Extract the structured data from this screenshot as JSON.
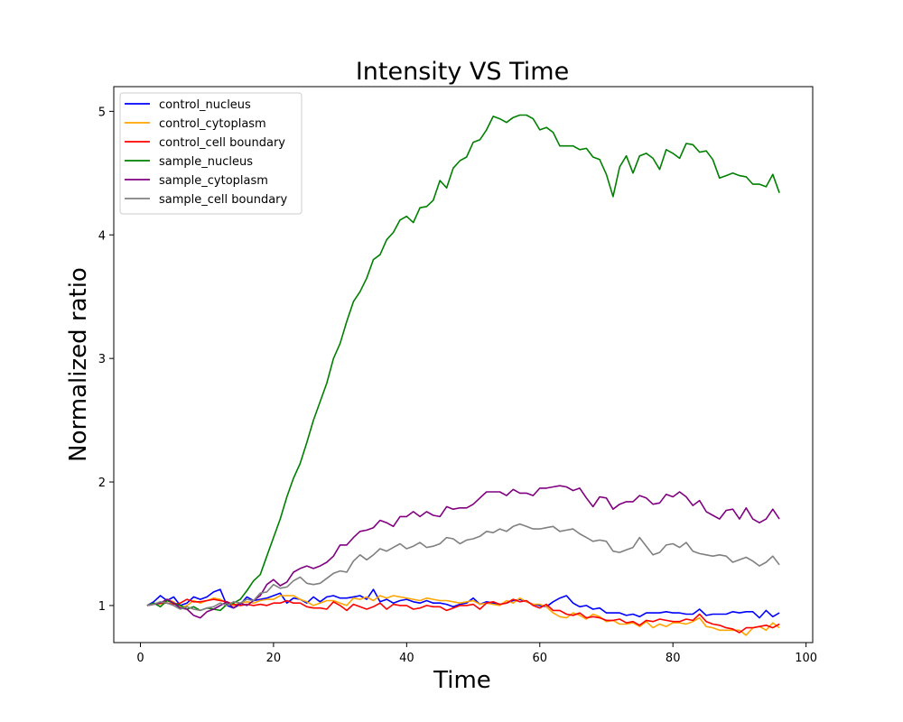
{
  "chart_data": {
    "type": "line",
    "title": "Intensity VS Time",
    "xlabel": "Time",
    "ylabel": "Normalized ratio",
    "xlim": [
      -4,
      101
    ],
    "ylim": [
      0.7,
      5.2
    ],
    "xticks": [
      0,
      20,
      40,
      60,
      80,
      100
    ],
    "yticks": [
      1,
      2,
      3,
      4,
      5
    ],
    "grid": false,
    "legend_position": "top-left",
    "x": [
      1,
      2,
      3,
      4,
      5,
      6,
      7,
      8,
      9,
      10,
      11,
      12,
      13,
      14,
      15,
      16,
      17,
      18,
      19,
      20,
      21,
      22,
      23,
      24,
      25,
      26,
      27,
      28,
      29,
      30,
      31,
      32,
      33,
      34,
      35,
      36,
      37,
      38,
      39,
      40,
      41,
      42,
      43,
      44,
      45,
      46,
      47,
      48,
      49,
      50,
      51,
      52,
      53,
      54,
      55,
      56,
      57,
      58,
      59,
      60,
      61,
      62,
      63,
      64,
      65,
      66,
      67,
      68,
      69,
      70,
      71,
      72,
      73,
      74,
      75,
      76,
      77,
      78,
      79,
      80,
      81,
      82,
      83,
      84,
      85,
      86,
      87,
      88,
      89,
      90,
      91,
      92,
      93,
      94,
      95,
      96
    ],
    "series": [
      {
        "name": "control_nucleus",
        "color": "#0000ff",
        "values": [
          1.0,
          1.03,
          1.08,
          1.04,
          1.07,
          1.0,
          1.02,
          1.07,
          1.05,
          1.07,
          1.11,
          1.13,
          1.0,
          0.98,
          1.01,
          1.07,
          1.04,
          1.05,
          1.06,
          1.08,
          1.1,
          1.02,
          1.06,
          1.05,
          1.02,
          1.07,
          1.03,
          1.07,
          1.08,
          1.06,
          1.06,
          1.07,
          1.08,
          1.05,
          1.13,
          1.03,
          1.05,
          1.02,
          1.04,
          1.05,
          1.03,
          1.02,
          1.04,
          1.02,
          1.02,
          1.01,
          0.99,
          1.01,
          1.02,
          1.06,
          1.01,
          1.03,
          1.02,
          1.01,
          1.02,
          1.04,
          1.05,
          1.03,
          1.01,
          1.0,
          0.99,
          1.03,
          1.06,
          1.08,
          1.02,
          0.99,
          1.0,
          0.97,
          0.98,
          0.94,
          0.94,
          0.94,
          0.92,
          0.93,
          0.91,
          0.94,
          0.94,
          0.94,
          0.95,
          0.94,
          0.94,
          0.93,
          0.93,
          0.97,
          0.92,
          0.93,
          0.93,
          0.93,
          0.95,
          0.94,
          0.95,
          0.95,
          0.9,
          0.96,
          0.91,
          0.94
        ]
      },
      {
        "name": "control_cytoplasm",
        "color": "#ffa500",
        "values": [
          1.0,
          1.02,
          1.01,
          1.05,
          1.03,
          0.98,
          1.0,
          1.04,
          1.02,
          1.04,
          1.06,
          1.05,
          1.02,
          1.0,
          1.02,
          1.03,
          1.02,
          1.04,
          1.05,
          1.05,
          1.08,
          1.08,
          1.08,
          1.05,
          1.03,
          1.0,
          1.02,
          1.04,
          1.04,
          1.02,
          1.0,
          1.06,
          1.05,
          1.07,
          1.04,
          1.08,
          1.06,
          1.08,
          1.07,
          1.06,
          1.05,
          1.04,
          1.06,
          1.05,
          1.04,
          1.04,
          1.03,
          1.02,
          1.03,
          1.04,
          1.01,
          1.02,
          1.01,
          1.0,
          1.04,
          1.02,
          1.06,
          1.03,
          1.01,
          1.01,
          0.99,
          0.94,
          0.91,
          0.9,
          0.94,
          0.92,
          0.89,
          0.93,
          0.91,
          0.87,
          0.88,
          0.85,
          0.85,
          0.86,
          0.83,
          0.87,
          0.82,
          0.85,
          0.83,
          0.86,
          0.86,
          0.85,
          0.87,
          0.9,
          0.83,
          0.82,
          0.8,
          0.8,
          0.8,
          0.8,
          0.76,
          0.82,
          0.83,
          0.8,
          0.86,
          0.82
        ]
      },
      {
        "name": "control_cell boundary",
        "color": "#ff0000",
        "values": [
          1.0,
          1.01,
          1.02,
          1.02,
          1.01,
          1.02,
          1.05,
          1.03,
          1.03,
          1.04,
          1.05,
          1.04,
          1.03,
          1.01,
          1.0,
          1.01,
          1.0,
          1.01,
          1.0,
          1.02,
          1.02,
          1.04,
          1.02,
          1.02,
          0.99,
          0.98,
          0.98,
          0.97,
          1.03,
          1.0,
          0.96,
          1.01,
          0.99,
          0.97,
          0.99,
          1.02,
          0.97,
          1.01,
          1.0,
          1.0,
          0.97,
          0.98,
          1.0,
          0.99,
          0.99,
          0.96,
          0.98,
          1.0,
          1.0,
          1.01,
          0.97,
          1.02,
          1.03,
          1.01,
          1.02,
          1.05,
          1.03,
          1.04,
          1.0,
          0.98,
          1.01,
          0.96,
          0.96,
          0.93,
          0.92,
          0.94,
          0.9,
          0.91,
          0.9,
          0.88,
          0.88,
          0.89,
          0.86,
          0.87,
          0.84,
          0.88,
          0.87,
          0.89,
          0.88,
          0.87,
          0.87,
          0.89,
          0.88,
          0.93,
          0.87,
          0.85,
          0.84,
          0.82,
          0.81,
          0.78,
          0.82,
          0.82,
          0.83,
          0.84,
          0.82,
          0.85
        ]
      },
      {
        "name": "sample_nucleus",
        "color": "#008000",
        "values": [
          1.0,
          1.02,
          0.99,
          1.04,
          1.02,
          1.0,
          0.97,
          0.99,
          0.96,
          0.98,
          0.97,
          0.96,
          1.01,
          1.02,
          1.05,
          1.12,
          1.2,
          1.25,
          1.4,
          1.55,
          1.7,
          1.88,
          2.03,
          2.15,
          2.32,
          2.5,
          2.65,
          2.8,
          3.0,
          3.12,
          3.3,
          3.46,
          3.54,
          3.65,
          3.8,
          3.84,
          3.96,
          4.02,
          4.12,
          4.15,
          4.1,
          4.22,
          4.23,
          4.28,
          4.44,
          4.38,
          4.54,
          4.6,
          4.63,
          4.75,
          4.77,
          4.85,
          4.96,
          4.94,
          4.91,
          4.95,
          4.97,
          4.97,
          4.94,
          4.85,
          4.87,
          4.83,
          4.72,
          4.72,
          4.72,
          4.69,
          4.7,
          4.63,
          4.61,
          4.49,
          4.31,
          4.55,
          4.64,
          4.5,
          4.64,
          4.66,
          4.62,
          4.53,
          4.69,
          4.66,
          4.62,
          4.74,
          4.73,
          4.67,
          4.68,
          4.61,
          4.46,
          4.48,
          4.5,
          4.48,
          4.47,
          4.41,
          4.41,
          4.39,
          4.49,
          4.34
        ]
      },
      {
        "name": "sample_cytoplasm",
        "color": "#800080",
        "values": [
          1.0,
          1.01,
          1.02,
          1.05,
          1.02,
          0.98,
          0.97,
          0.92,
          0.9,
          0.95,
          0.97,
          1.0,
          1.03,
          0.98,
          1.02,
          1.0,
          1.04,
          1.08,
          1.17,
          1.21,
          1.16,
          1.19,
          1.27,
          1.3,
          1.32,
          1.3,
          1.32,
          1.35,
          1.4,
          1.49,
          1.49,
          1.55,
          1.6,
          1.61,
          1.63,
          1.69,
          1.67,
          1.64,
          1.72,
          1.72,
          1.76,
          1.72,
          1.76,
          1.73,
          1.72,
          1.8,
          1.78,
          1.79,
          1.79,
          1.82,
          1.87,
          1.92,
          1.92,
          1.92,
          1.89,
          1.94,
          1.91,
          1.91,
          1.89,
          1.95,
          1.95,
          1.96,
          1.97,
          1.96,
          1.93,
          1.95,
          1.87,
          1.8,
          1.88,
          1.87,
          1.78,
          1.82,
          1.84,
          1.84,
          1.89,
          1.87,
          1.82,
          1.83,
          1.9,
          1.88,
          1.92,
          1.88,
          1.81,
          1.85,
          1.76,
          1.73,
          1.7,
          1.77,
          1.78,
          1.7,
          1.79,
          1.7,
          1.67,
          1.7,
          1.78,
          1.7
        ]
      },
      {
        "name": "sample_cell boundary",
        "color": "#808080",
        "values": [
          1.0,
          1.01,
          1.03,
          1.02,
          1.0,
          0.97,
          0.99,
          0.97,
          0.96,
          0.98,
          0.99,
          1.02,
          1.0,
          1.03,
          1.02,
          1.05,
          1.04,
          1.1,
          1.11,
          1.17,
          1.14,
          1.15,
          1.2,
          1.23,
          1.18,
          1.17,
          1.18,
          1.22,
          1.26,
          1.28,
          1.27,
          1.36,
          1.41,
          1.37,
          1.41,
          1.46,
          1.44,
          1.47,
          1.5,
          1.46,
          1.48,
          1.51,
          1.47,
          1.48,
          1.5,
          1.55,
          1.54,
          1.5,
          1.53,
          1.54,
          1.56,
          1.6,
          1.59,
          1.62,
          1.6,
          1.64,
          1.66,
          1.64,
          1.62,
          1.62,
          1.63,
          1.64,
          1.6,
          1.61,
          1.62,
          1.58,
          1.55,
          1.52,
          1.53,
          1.52,
          1.44,
          1.43,
          1.45,
          1.47,
          1.55,
          1.48,
          1.41,
          1.43,
          1.49,
          1.5,
          1.47,
          1.51,
          1.44,
          1.42,
          1.41,
          1.4,
          1.41,
          1.4,
          1.35,
          1.37,
          1.39,
          1.36,
          1.32,
          1.35,
          1.4,
          1.33
        ]
      }
    ]
  }
}
